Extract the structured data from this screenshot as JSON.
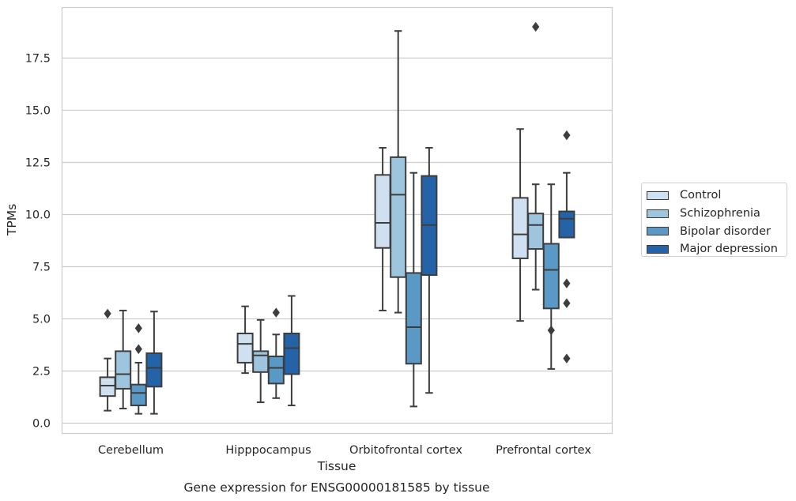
{
  "chart_data": {
    "type": "boxplot",
    "title": "Gene expression for ENSG00000181585 by tissue",
    "xlabel": "Tissue",
    "ylabel": "TPMs",
    "ylim": [
      -0.45,
      19.8
    ],
    "yticks": [
      "0.0",
      "2.5",
      "5.0",
      "7.5",
      "10.0",
      "12.5",
      "15.0",
      "17.5"
    ],
    "categories": [
      "Cerebellum",
      "Hipppocampus",
      "Orbitofrontal cortex",
      "Prefrontal cortex"
    ],
    "grid": "horizontal",
    "legend_position": "right",
    "series": [
      {
        "name": "Control",
        "color": "#cfe0f0",
        "boxes": [
          {
            "whisker_low": 0.6,
            "q1": 1.3,
            "median": 1.8,
            "q3": 2.2,
            "whisker_high": 3.1,
            "outliers": [
              5.25
            ]
          },
          {
            "whisker_low": 2.4,
            "q1": 2.9,
            "median": 3.8,
            "q3": 4.3,
            "whisker_high": 5.6,
            "outliers": []
          },
          {
            "whisker_low": 5.4,
            "q1": 8.4,
            "median": 9.6,
            "q3": 11.9,
            "whisker_high": 13.2,
            "outliers": []
          },
          {
            "whisker_low": 4.9,
            "q1": 7.9,
            "median": 9.05,
            "q3": 10.8,
            "whisker_high": 14.1,
            "outliers": []
          }
        ]
      },
      {
        "name": "Schizophrenia",
        "color": "#9dc5de",
        "boxes": [
          {
            "whisker_low": 0.7,
            "q1": 1.65,
            "median": 2.35,
            "q3": 3.45,
            "whisker_high": 5.4,
            "outliers": []
          },
          {
            "whisker_low": 1.0,
            "q1": 2.45,
            "median": 3.25,
            "q3": 3.45,
            "whisker_high": 4.95,
            "outliers": []
          },
          {
            "whisker_low": 5.3,
            "q1": 7.0,
            "median": 10.95,
            "q3": 12.75,
            "whisker_high": 18.8,
            "outliers": []
          },
          {
            "whisker_low": 6.4,
            "q1": 8.35,
            "median": 9.5,
            "q3": 10.05,
            "whisker_high": 11.45,
            "outliers": [
              19.0
            ]
          }
        ]
      },
      {
        "name": "Bipolar disorder",
        "color": "#5a98c6",
        "boxes": [
          {
            "whisker_low": 0.45,
            "q1": 0.85,
            "median": 1.45,
            "q3": 1.85,
            "whisker_high": 2.9,
            "outliers": [
              3.55,
              4.55
            ]
          },
          {
            "whisker_low": 1.2,
            "q1": 1.9,
            "median": 2.65,
            "q3": 3.2,
            "whisker_high": 4.25,
            "outliers": [
              5.3
            ]
          },
          {
            "whisker_low": 0.8,
            "q1": 2.85,
            "median": 4.6,
            "q3": 7.2,
            "whisker_high": 12.0,
            "outliers": []
          },
          {
            "whisker_low": 2.6,
            "q1": 5.5,
            "median": 7.35,
            "q3": 8.6,
            "whisker_high": 11.45,
            "outliers": [
              4.45
            ]
          }
        ]
      },
      {
        "name": "Major depression",
        "color": "#2563a8",
        "boxes": [
          {
            "whisker_low": 0.45,
            "q1": 1.75,
            "median": 2.65,
            "q3": 3.35,
            "whisker_high": 5.35,
            "outliers": []
          },
          {
            "whisker_low": 0.85,
            "q1": 2.35,
            "median": 3.6,
            "q3": 4.3,
            "whisker_high": 6.1,
            "outliers": []
          },
          {
            "whisker_low": 1.45,
            "q1": 7.1,
            "median": 9.5,
            "q3": 11.85,
            "whisker_high": 13.2,
            "outliers": []
          },
          {
            "whisker_low": 8.9,
            "q1": 8.9,
            "median": 9.8,
            "q3": 10.15,
            "whisker_high": 12.0,
            "outliers": [
              13.8,
              6.7,
              5.75,
              3.1
            ]
          }
        ]
      }
    ]
  }
}
